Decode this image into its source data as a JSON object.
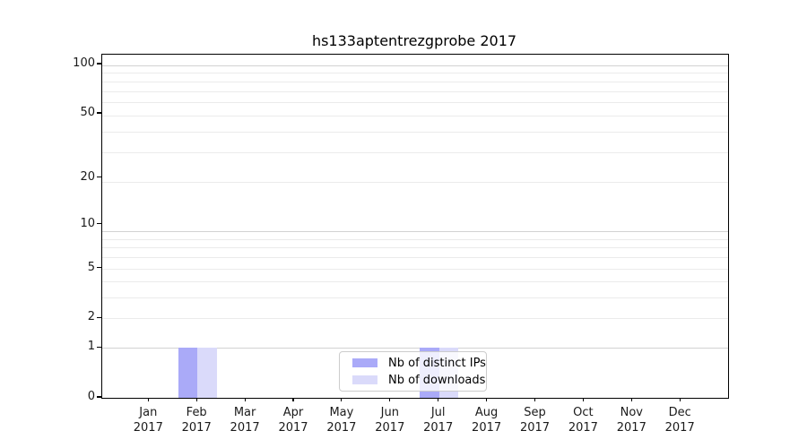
{
  "title": "hs133aptentrezgprobe 2017",
  "chart_data": {
    "type": "bar",
    "categories": [
      "Jan 2017",
      "Feb 2017",
      "Mar 2017",
      "Apr 2017",
      "May 2017",
      "Jun 2017",
      "Jul 2017",
      "Aug 2017",
      "Sep 2017",
      "Oct 2017",
      "Nov 2017",
      "Dec 2017"
    ],
    "series": [
      {
        "name": "Nb of distinct IPs",
        "color": "#aaaaf8",
        "values": [
          0,
          1,
          0,
          0,
          0,
          0,
          1,
          0,
          0,
          0,
          0,
          0
        ]
      },
      {
        "name": "Nb of downloads",
        "color": "#dadafa",
        "values": [
          0,
          1,
          0,
          0,
          0,
          0,
          1,
          0,
          0,
          0,
          0,
          0
        ]
      }
    ],
    "title": "hs133aptentrezgprobe 2017",
    "xlabel": "",
    "ylabel": "",
    "yscale": "log10(1+y)",
    "y_ticks": [
      0,
      1,
      2,
      5,
      10,
      20,
      50,
      100
    ],
    "ylim": [
      0,
      115
    ],
    "grid": "horizontal",
    "legend_position": "lower center"
  },
  "legend": {
    "items": [
      {
        "label": "Nb of distinct IPs",
        "color": "#aaaaf8"
      },
      {
        "label": "Nb of downloads",
        "color": "#dadafa"
      }
    ]
  },
  "colors": {
    "bar_distinct_ips": "#aaaaf8",
    "bar_downloads": "#dadafa",
    "grid_major": "#d2d2d2",
    "grid_minor": "#ebebeb",
    "axis": "#000000"
  }
}
